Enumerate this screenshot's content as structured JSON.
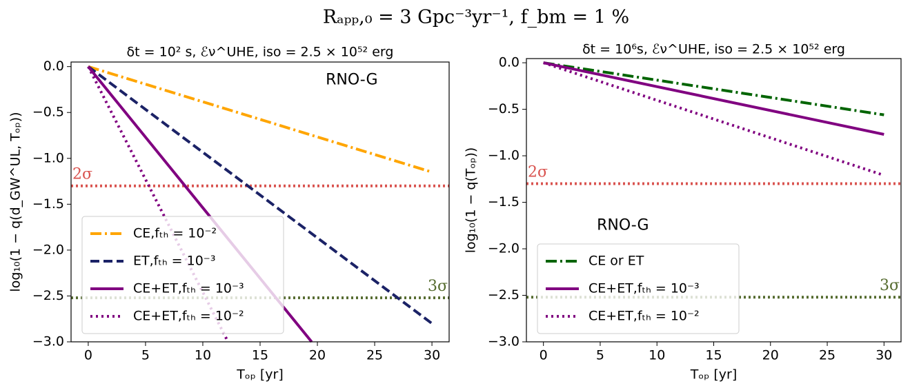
{
  "title": "Rₐₚₚ,₀ = 3 Gpc⁻³yr⁻¹, f_bm = 1 %",
  "chart_data": [
    {
      "type": "line",
      "title": "δt = 10² s, ℰν^UHE, iso = 2.5 × 10⁵² erg",
      "x_label": "Tₒₚ [yr]",
      "y_label": "log₁₀(1 − q(d_GW^UL, Tₒₚ))",
      "annotation": "RNO-G",
      "xlim": [
        -1.5,
        31.5
      ],
      "xticks": [
        0,
        5,
        10,
        15,
        20,
        25,
        30
      ],
      "ylim": [
        -3,
        0.05
      ],
      "yticks": [
        {
          "value": -3,
          "label": "−3.0"
        },
        {
          "value": -2.5,
          "label": "−2.5"
        },
        {
          "value": -2,
          "label": "−2.0"
        },
        {
          "value": -1.5,
          "label": "−1.5"
        },
        {
          "value": -1,
          "label": "−1.0"
        },
        {
          "value": -0.5,
          "label": "−0.5"
        },
        {
          "value": 0,
          "label": "0.0"
        }
      ],
      "legend": "lower left",
      "hlines": [
        {
          "value": -1.3,
          "label": "2σ",
          "color": "#d9534f"
        },
        {
          "value": -2.52,
          "label": "3σ",
          "color": "#556b2f"
        }
      ],
      "series": [
        {
          "name": "CE,fₜₕ = 10⁻²",
          "color": "#ffa500",
          "style": "dashdot",
          "x": [
            0,
            30
          ],
          "values": [
            0,
            -1.15
          ]
        },
        {
          "name": "ET,fₜₕ = 10⁻³",
          "color": "#1b2266",
          "style": "dashed",
          "x": [
            0,
            30
          ],
          "values": [
            0,
            -2.8
          ]
        },
        {
          "name": "CE+ET,fₜₕ = 10⁻³",
          "color": "#800080",
          "style": "solid",
          "x": [
            0,
            19.5
          ],
          "values": [
            0,
            -3
          ]
        },
        {
          "name": "CE+ET,fₜₕ = 10⁻²",
          "color": "#800080",
          "style": "dotted",
          "x": [
            0,
            12.2
          ],
          "values": [
            0,
            -3
          ]
        }
      ]
    },
    {
      "type": "line",
      "title": "δt = 10⁶s, ℰν^UHE, iso = 2.5 × 10⁵² erg",
      "x_label": "Tₒₚ [yr]",
      "y_label": "log₁₀(1 − q(Tₒₚ))",
      "annotation": "RNO-G",
      "xlim": [
        -1.5,
        31.5
      ],
      "xticks": [
        0,
        5,
        10,
        15,
        20,
        25,
        30
      ],
      "ylim": [
        -3,
        0.045
      ],
      "yticks": [
        {
          "value": -3,
          "label": "−3.0"
        },
        {
          "value": -2.5,
          "label": "−2.5"
        },
        {
          "value": -2,
          "label": "−2.0"
        },
        {
          "value": -1.5,
          "label": "−1.5"
        },
        {
          "value": -1,
          "label": "−1.0"
        },
        {
          "value": -0.5,
          "label": "−0.5"
        },
        {
          "value": 0,
          "label": "0.0"
        }
      ],
      "legend": "lower left",
      "hlines": [
        {
          "value": -1.3,
          "label": "2σ",
          "color": "#d9534f"
        },
        {
          "value": -2.52,
          "label": "3σ",
          "color": "#556b2f"
        }
      ],
      "series": [
        {
          "name": "CE or ET",
          "color": "#006400",
          "style": "dashdot",
          "x": [
            0,
            30
          ],
          "values": [
            0,
            -0.56
          ]
        },
        {
          "name": "CE+ET,fₜₕ = 10⁻³",
          "color": "#800080",
          "style": "solid",
          "x": [
            0,
            30
          ],
          "values": [
            0,
            -0.77
          ]
        },
        {
          "name": "CE+ET,fₜₕ = 10⁻²",
          "color": "#800080",
          "style": "dotted",
          "x": [
            0,
            30
          ],
          "values": [
            0,
            -1.21
          ]
        }
      ]
    }
  ]
}
